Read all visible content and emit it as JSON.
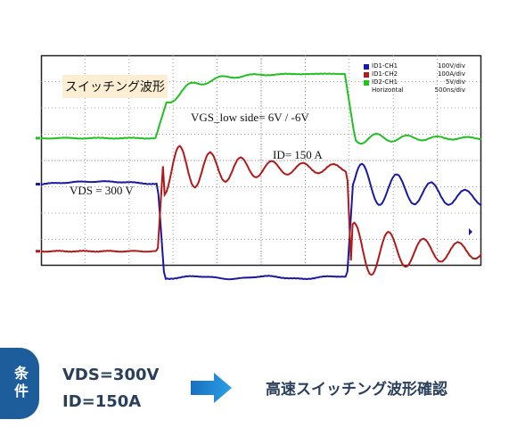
{
  "chart_data": {
    "type": "line",
    "title": "スイッチング波形",
    "annotations": {
      "vgs": "VGS_low side= 6V / -6V",
      "id": "ID= 150 A",
      "vds": "VDS = 300 V"
    },
    "legend": [
      {
        "name": "ID1-CH1",
        "scale": "100V/div",
        "color": "#1a1aa0"
      },
      {
        "name": "ID1-CH2",
        "scale": "100A/div",
        "color": "#b01a1a"
      },
      {
        "name": "ID2-CH1",
        "scale": "5V/div",
        "color": "#22c022"
      },
      {
        "name": "Horizontal",
        "scale": "500ns/div",
        "color": ""
      }
    ],
    "x_divisions": 10,
    "y_divisions": 8,
    "series": [
      {
        "name": "ID2-CH1",
        "color": "#22c022",
        "baseline_div": 3.15,
        "high_div": 0.7,
        "switch_on_div": 2.6,
        "switch_off_div": 6.9
      },
      {
        "name": "ID1-CH1",
        "color": "#1a1aa0",
        "baseline_div": 4.9,
        "low_div": 8.45,
        "switch_on_div": 2.65,
        "switch_off_div": 6.95
      },
      {
        "name": "ID1-CH2",
        "color": "#b01a1a",
        "baseline_div": 7.45,
        "high_div": 4.3,
        "switch_on_div": 2.65,
        "switch_off_div": 6.95
      }
    ]
  },
  "conditions": {
    "badge": "条件",
    "line1": "VDS=300V",
    "line2": "ID=150A",
    "result": "高速スイッチング波形確認"
  }
}
